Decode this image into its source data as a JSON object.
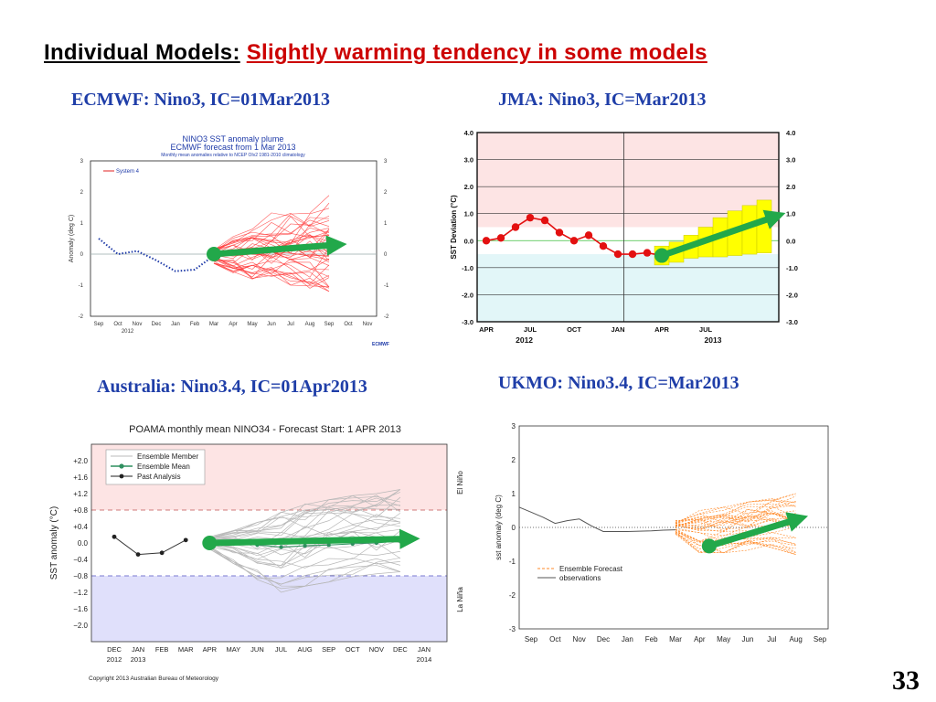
{
  "slide": {
    "title_lead": "Individual Models:",
    "title_rest": "Slightly warming tendency in some models",
    "page_number": "33",
    "headings": {
      "ecmwf": "ECMWF: Nino3, IC=01Mar2013",
      "jma": "JMA: Nino3, IC=Mar2013",
      "poama": "Australia: Nino3.4, IC=01Apr2013",
      "ukmo": "UKMO: Nino3.4, IC=Mar2013"
    },
    "colors": {
      "title_red": "#cc0000",
      "heading_blue": "#1f3ea8",
      "arrow_green": "#22a84a"
    }
  },
  "chart_data": [
    {
      "id": "ecmwf",
      "type": "line",
      "title": "NINO3 SST anomaly plume",
      "subtitle": "ECMWF forecast from 1 Mar 2013",
      "subtitle2": "Monthly mean anomalies relative to NCEP OIv2 1981-2010 climatology",
      "xlabel": "",
      "ylabel": "Anomaly (deg C)",
      "ylim": [
        -2,
        3
      ],
      "yticks": [
        -2,
        -1,
        0,
        1,
        2,
        3
      ],
      "xticks": [
        "Sep",
        "Oct",
        "Nov",
        "Dec",
        "Jan",
        "Feb",
        "Mar",
        "Apr",
        "May",
        "Jun",
        "Jul",
        "Aug",
        "Sep",
        "Oct",
        "Nov"
      ],
      "year_label": "2012",
      "legend": [
        "System 4"
      ],
      "logo_text": "ECMWF",
      "observed": {
        "x": [
          0,
          1,
          2,
          3,
          4,
          5,
          6
        ],
        "y": [
          0.5,
          0.0,
          0.1,
          -0.2,
          -0.55,
          -0.5,
          -0.05
        ]
      },
      "forecast_spread": {
        "x": [
          6,
          7,
          8,
          9,
          10,
          11,
          12
        ],
        "min": [
          -0.3,
          -0.6,
          -0.8,
          -0.9,
          -1.0,
          -1.1,
          -1.2
        ],
        "max": [
          0.3,
          0.9,
          1.2,
          1.4,
          1.6,
          1.8,
          2.0
        ]
      },
      "ensemble_mean": {
        "x": [
          6,
          12
        ],
        "y": [
          0.0,
          0.15
        ]
      },
      "tendency_arrow": {
        "from": [
          6,
          0.0
        ],
        "to": [
          12.4,
          0.3
        ]
      }
    },
    {
      "id": "jma",
      "type": "line",
      "ylabel": "SST Deviation (°C)",
      "ylim": [
        -3.0,
        4.0
      ],
      "yticks": [
        "4.0",
        "3.0",
        "2.0",
        "1.0",
        "0.0",
        "-1.0",
        "-2.0",
        "-3.0"
      ],
      "xticks": [
        "APR",
        "JUL",
        "OCT",
        "JAN",
        "APR",
        "JUL"
      ],
      "year_labels": [
        "2012",
        "2013"
      ],
      "observed": {
        "x": [
          0,
          1,
          2,
          3,
          4,
          5,
          6,
          7,
          8,
          9,
          10,
          11,
          12
        ],
        "y": [
          0.0,
          0.1,
          0.5,
          0.85,
          0.75,
          0.3,
          0.0,
          0.2,
          -0.2,
          -0.5,
          -0.5,
          -0.45,
          -0.55
        ]
      },
      "forecast_boxes": {
        "x": [
          12,
          13,
          14,
          15,
          16,
          17,
          18,
          19
        ],
        "low": [
          -0.9,
          -0.8,
          -0.65,
          -0.6,
          -0.6,
          -0.55,
          -0.5,
          -0.45
        ],
        "high": [
          -0.2,
          -0.05,
          0.2,
          0.5,
          0.85,
          1.1,
          1.3,
          1.5
        ]
      },
      "tendency_arrow": {
        "from": [
          12,
          -0.55
        ],
        "to": [
          19.8,
          0.9
        ]
      }
    },
    {
      "id": "poama",
      "type": "line",
      "title": "POAMA monthly mean NINO34 - Forecast Start: 1 APR 2013",
      "ylabel": "SST anomaly (°C)",
      "ylim": [
        -2.4,
        2.4
      ],
      "yticks": [
        "+2.0",
        "+1.6",
        "+1.2",
        "+0.8",
        "+0.4",
        "0.0",
        "−0.4",
        "−0.8",
        "−1.2",
        "−1.6",
        "−2.0"
      ],
      "xticks": [
        "DEC",
        "JAN",
        "FEB",
        "MAR",
        "APR",
        "MAY",
        "JUN",
        "JUL",
        "AUG",
        "SEP",
        "OCT",
        "NOV",
        "DEC",
        "JAN"
      ],
      "year_labels": [
        "2012",
        "2013",
        "",
        "2014"
      ],
      "legend": [
        "Ensemble Member",
        "Ensemble Mean",
        "Past Analysis"
      ],
      "side_labels": {
        "warm": "El Niño",
        "cold": "La Niña"
      },
      "copyright": "Copyright 2013 Australian Bureau of Meteorology",
      "past_analysis": {
        "x": [
          0,
          1,
          2,
          3
        ],
        "y": [
          0.15,
          -0.28,
          -0.24,
          0.07
        ]
      },
      "ensemble_mean": {
        "x": [
          4,
          5,
          6,
          7,
          8,
          9,
          10,
          11,
          12
        ],
        "y": [
          0.0,
          -0.02,
          -0.05,
          -0.1,
          -0.07,
          -0.05,
          -0.02,
          0.0,
          0.05
        ]
      },
      "member_spread": {
        "x": [
          4,
          5,
          6,
          7,
          8,
          9,
          10,
          11,
          12
        ],
        "min": [
          -0.15,
          -0.5,
          -0.9,
          -1.2,
          -1.05,
          -0.95,
          -0.85,
          -0.75,
          -0.7
        ],
        "max": [
          0.15,
          0.3,
          0.5,
          0.75,
          0.95,
          1.05,
          1.15,
          1.2,
          1.3
        ]
      },
      "tendency_arrow": {
        "from": [
          4,
          0.0
        ],
        "to": [
          12.4,
          0.1
        ]
      }
    },
    {
      "id": "ukmo",
      "type": "line",
      "ylabel": "sst anomaly (deg C)",
      "ylim": [
        -3,
        3
      ],
      "yticks": [
        3,
        2,
        1,
        0,
        -1,
        -2,
        -3
      ],
      "xticks": [
        "Sep",
        "Oct",
        "Nov",
        "Dec",
        "Jan",
        "Feb",
        "Mar",
        "Apr",
        "May",
        "Jun",
        "Jul",
        "Aug",
        "Sep"
      ],
      "legend": [
        "Ensemble Forecast",
        "observations"
      ],
      "observations": {
        "x": [
          -0.5,
          0,
          0.5,
          1,
          1.5,
          2,
          2.5,
          3,
          4,
          5,
          5.5,
          6
        ],
        "y": [
          0.6,
          0.45,
          0.3,
          0.12,
          0.2,
          0.25,
          0.05,
          -0.12,
          -0.12,
          -0.1,
          -0.08,
          -0.07
        ]
      },
      "forecast_spread": {
        "x": [
          6,
          7,
          8,
          9,
          10,
          11
        ],
        "min": [
          -0.2,
          -0.75,
          -0.75,
          -0.7,
          -0.6,
          -0.8
        ],
        "max": [
          0.2,
          0.5,
          0.6,
          0.75,
          0.85,
          1.0
        ]
      },
      "tendency_arrow": {
        "from": [
          7.4,
          -0.55
        ],
        "to": [
          11.1,
          0.25
        ]
      }
    }
  ]
}
